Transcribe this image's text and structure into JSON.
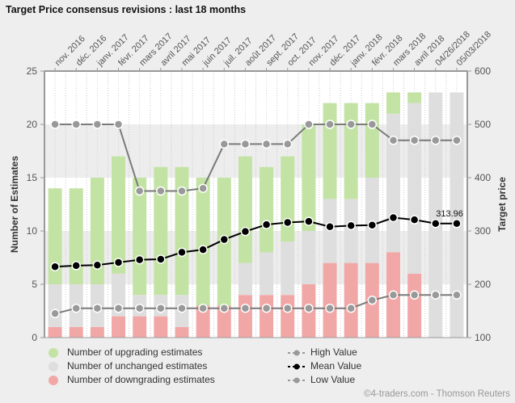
{
  "title": "Target Price consensus revisions : last 18 months",
  "footer": "©4-traders.com - Thomson Reuters",
  "colors": {
    "upgrade": "#c3e3a4",
    "unchanged": "#dedede",
    "downgrade": "#f2a7a7",
    "high": "#808080",
    "mean": "#000000",
    "low": "#808080"
  },
  "legend": {
    "upgrade": "Number of upgrading estimates",
    "unchanged": "Number of unchanged estimates",
    "downgrade": "Number of downgrading estimates",
    "high": "High Value",
    "mean": "Mean Value",
    "low": "Low Value"
  },
  "chart_data": {
    "type": "bar",
    "title": "Target Price consensus revisions : last 18 months",
    "ylabel": "Number of Estimates",
    "y2label": "Target price",
    "ylim": [
      0,
      25
    ],
    "yticks": [
      0,
      5,
      10,
      15,
      20,
      25
    ],
    "y2lim": [
      100,
      600
    ],
    "y2ticks": [
      100,
      200,
      300,
      400,
      500,
      600
    ],
    "categories": [
      "nov. 2016",
      "déc. 2016",
      "janv. 2017",
      "févr. 2017",
      "mars 2017",
      "avril 2017",
      "mai 2017",
      "juin 2017",
      "juil. 2017",
      "août 2017",
      "sept. 2017",
      "oct. 2017",
      "nov. 2017",
      "déc. 2017",
      "janv. 2018",
      "févr. 2018",
      "mars 2018",
      "avril 2018",
      "04/26/2018",
      "05/03/2018"
    ],
    "series": [
      {
        "name": "Number of downgrading estimates",
        "type": "bar",
        "axis": "left",
        "values": [
          1,
          1,
          1,
          2,
          2,
          2,
          1,
          3,
          3,
          4,
          4,
          4,
          5,
          7,
          7,
          7,
          8,
          6,
          0,
          0
        ]
      },
      {
        "name": "Number of unchanged estimates",
        "type": "bar",
        "axis": "left",
        "values": [
          4,
          4,
          4,
          4,
          2,
          2,
          3,
          0,
          0,
          3,
          4,
          5,
          5,
          6,
          6,
          8,
          13,
          16,
          23,
          23
        ]
      },
      {
        "name": "Number of upgrading estimates",
        "type": "bar",
        "axis": "left",
        "values": [
          9,
          9,
          10,
          11,
          11,
          12,
          12,
          12,
          12,
          10,
          8,
          8,
          10,
          9,
          9,
          7,
          2,
          1,
          0,
          0
        ]
      },
      {
        "name": "High Value",
        "type": "line",
        "axis": "right",
        "values": [
          500,
          500,
          500,
          500,
          375,
          375,
          375,
          380,
          463,
          463,
          463,
          463,
          500,
          500,
          500,
          500,
          470,
          470,
          470,
          470
        ]
      },
      {
        "name": "Mean Value",
        "type": "line",
        "axis": "right",
        "values": [
          233,
          235,
          236,
          241,
          246,
          247,
          260,
          265,
          284,
          299,
          312,
          316,
          318,
          308,
          310,
          311,
          325,
          321,
          314,
          313.96
        ]
      },
      {
        "name": "Low Value",
        "type": "line",
        "axis": "right",
        "values": [
          145,
          155,
          155,
          155,
          155,
          155,
          155,
          155,
          155,
          155,
          155,
          155,
          155,
          155,
          155,
          170,
          180,
          180,
          180,
          180
        ]
      }
    ],
    "annotations": [
      {
        "series": "Mean Value",
        "index": 19,
        "text": "313.96"
      }
    ],
    "grid": true,
    "legend_position": "bottom"
  }
}
